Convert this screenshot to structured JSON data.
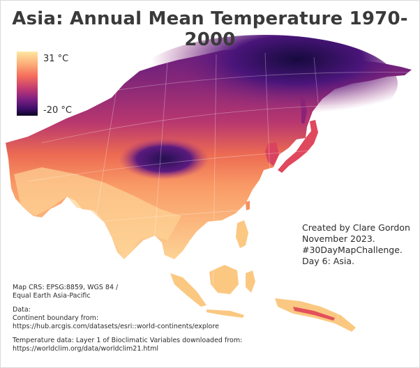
{
  "title": "Asia: Annual Mean Temperature 1970-2000",
  "legend": {
    "max_label": "31 °C",
    "min_label": "-20 °C",
    "colors": [
      "#fee7a2",
      "#fcb27a",
      "#f56e5b",
      "#c13a72",
      "#7b1f82",
      "#3a0e66",
      "#0b0521"
    ]
  },
  "credits": {
    "line1": "Created by Clare Gordon",
    "line2": "November 2023.",
    "line3": "#30DayMapChallenge.",
    "line4": "Day 6: Asia."
  },
  "notes": {
    "crs_line1": "Map CRS: EPSG:8859, WGS 84 /",
    "crs_line2": "Equal Earth Asia-Pacific",
    "data_label": "Data:",
    "boundary_label": "Continent boundary from:",
    "boundary_url": "https://hub.arcgis.com/datasets/esri::world-continents/explore",
    "temp_label": "Temperature data: Layer 1 of Bioclimatic Variables downloaded from:",
    "temp_url": "https://worldclim.org/data/worldclim21.html"
  }
}
